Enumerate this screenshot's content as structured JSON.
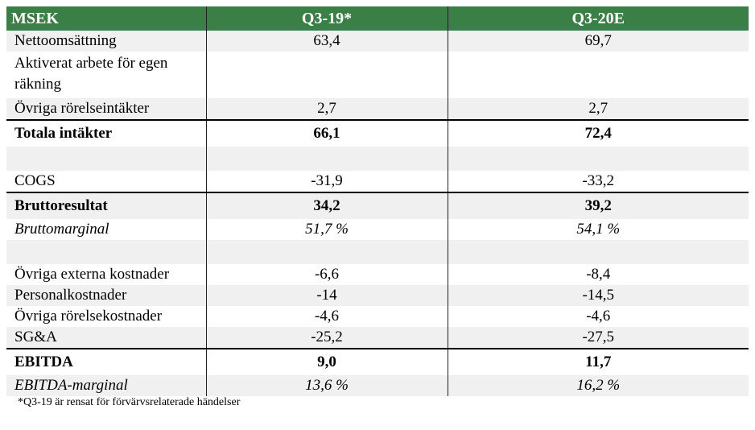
{
  "header": {
    "label": "MSEK",
    "col1": "Q3-19*",
    "col2": "Q3-20E"
  },
  "rows": [
    {
      "label": "Nettoomsättning",
      "v1": "63,4",
      "v2": "69,7"
    },
    {
      "label": "Aktiverat arbete för egen räkning",
      "v1": "",
      "v2": ""
    },
    {
      "label": "Övriga rörelseintäkter",
      "v1": "2,7",
      "v2": "2,7"
    },
    {
      "label": "Totala intäkter",
      "v1": "66,1",
      "v2": "72,4"
    },
    {
      "label": "",
      "v1": "",
      "v2": ""
    },
    {
      "label": "COGS",
      "v1": "-31,9",
      "v2": "-33,2"
    },
    {
      "label": "Bruttoresultat",
      "v1": "34,2",
      "v2": "39,2"
    },
    {
      "label": "Bruttomarginal",
      "v1": "51,7 %",
      "v2": "54,1 %"
    },
    {
      "label": "",
      "v1": "",
      "v2": ""
    },
    {
      "label": "Övriga externa kostnader",
      "v1": "-6,6",
      "v2": "-8,4"
    },
    {
      "label": "Personalkostnader",
      "v1": "-14",
      "v2": "-14,5"
    },
    {
      "label": "Övriga rörelsekostnader",
      "v1": "-4,6",
      "v2": "-4,6"
    },
    {
      "label": "SG&A",
      "v1": "-25,2",
      "v2": "-27,5"
    },
    {
      "label": "EBITDA",
      "v1": "9,0",
      "v2": "11,7"
    },
    {
      "label": "EBITDA-marginal",
      "v1": "13,6 %",
      "v2": "16,2 %"
    }
  ],
  "footnote": "*Q3-19 är rensat för förvärvsrelaterade händelser",
  "colors": {
    "header_bg": "#3a7f45",
    "shade_bg": "#f0f0f0"
  }
}
